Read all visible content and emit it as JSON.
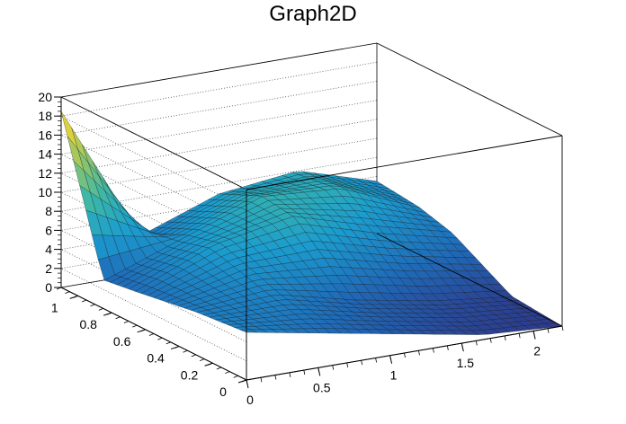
{
  "chart_data": {
    "type": "surface",
    "title": "Graph2D",
    "xlabel": "",
    "ylabel": "",
    "zlabel": "",
    "xlim": [
      0,
      2.2
    ],
    "ylim": [
      0,
      1.1
    ],
    "zlim": [
      0,
      20
    ],
    "x_ticks": [
      "0",
      "0.5",
      "1",
      "1.5",
      "2"
    ],
    "y_ticks": [
      "0",
      "0.2",
      "0.4",
      "0.6",
      "0.8",
      "1"
    ],
    "z_ticks": [
      "0",
      "2",
      "4",
      "6",
      "8",
      "10",
      "12",
      "14",
      "16",
      "18",
      "20"
    ],
    "grid": true,
    "x": [
      0.0,
      0.55,
      1.1,
      1.65,
      2.2
    ],
    "y": [
      0.0,
      0.3,
      0.65,
      0.85,
      1.1
    ],
    "z": [
      [
        5.0,
        3.5,
        2.0,
        0.5,
        0.0
      ],
      [
        4.5,
        5.0,
        3.0,
        1.5,
        0.5
      ],
      [
        3.5,
        7.0,
        8.5,
        6.0,
        4.0
      ],
      [
        3.0,
        6.0,
        9.0,
        8.5,
        5.0
      ],
      [
        18.5,
        4.0,
        7.0,
        8.0,
        5.5
      ]
    ],
    "colorscale": [
      "#2d3a8c",
      "#1f6ab8",
      "#1b9ccf",
      "#3bb8a8",
      "#8dc36e",
      "#e2d33a",
      "#f9f12a"
    ]
  }
}
